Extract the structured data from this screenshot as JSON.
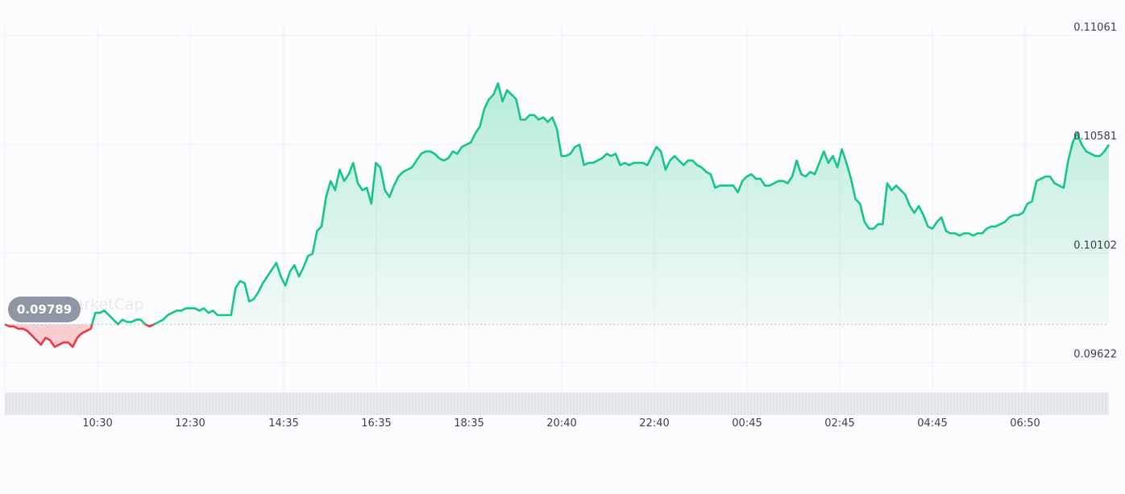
{
  "chart_data": {
    "type": "line",
    "watermark": "CoinMarketCap",
    "baseline_value": 0.09789,
    "baseline_label": "0.09789",
    "x_tick_labels": [
      "10:30",
      "12:30",
      "14:35",
      "16:35",
      "18:35",
      "20:40",
      "22:40",
      "00:45",
      "02:45",
      "04:45",
      "06:50"
    ],
    "y_tick_values": [
      0.11061,
      0.10581,
      0.10102,
      0.09622
    ],
    "y_tick_labels": [
      "0.11061",
      "0.10581",
      "0.10102",
      "0.09622"
    ],
    "ylim": [
      0.0955,
      0.1111
    ],
    "grid": true,
    "colors": {
      "up": "#16c784",
      "down": "#ea3943"
    },
    "series": [
      {
        "values": [
          0.0979,
          0.0978,
          0.0978,
          0.0977,
          0.0977,
          0.0976,
          0.0974,
          0.0972,
          0.097,
          0.0973,
          0.0972,
          0.0969,
          0.097,
          0.0971,
          0.0971,
          0.0969,
          0.0973,
          0.0975,
          0.0976,
          0.0977,
          0.0984,
          0.0984,
          0.0985,
          0.0983,
          0.0981,
          0.0979,
          0.0981,
          0.098,
          0.098,
          0.0981,
          0.0981,
          0.0979,
          0.0978,
          0.0979,
          0.098,
          0.0981,
          0.0983,
          0.0984,
          0.0985,
          0.0985,
          0.0986,
          0.0986,
          0.0986,
          0.0985,
          0.0986,
          0.0984,
          0.0985,
          0.0983,
          0.0983,
          0.0983,
          0.0983,
          0.0995,
          0.0998,
          0.0997,
          0.0989,
          0.099,
          0.0993,
          0.0997,
          0.1,
          0.1003,
          0.1006,
          0.1,
          0.0996,
          0.1002,
          0.1005,
          0.1,
          0.1004,
          0.1009,
          0.101,
          0.102,
          0.1022,
          0.1035,
          0.1042,
          0.1038,
          0.1047,
          0.1042,
          0.1045,
          0.105,
          0.1041,
          0.1038,
          0.1039,
          0.1032,
          0.105,
          0.1048,
          0.1038,
          0.1035,
          0.104,
          0.1044,
          0.1046,
          0.1047,
          0.1048,
          0.1051,
          0.1054,
          0.1055,
          0.1055,
          0.1054,
          0.1052,
          0.1051,
          0.1052,
          0.1055,
          0.1054,
          0.1057,
          0.1058,
          0.1059,
          0.1063,
          0.1066,
          0.1074,
          0.1078,
          0.108,
          0.1085,
          0.1077,
          0.1082,
          0.108,
          0.1078,
          0.1069,
          0.1069,
          0.1071,
          0.1071,
          0.1069,
          0.107,
          0.1068,
          0.107,
          0.1065,
          0.1053,
          0.1053,
          0.1054,
          0.1057,
          0.1058,
          0.1049,
          0.105,
          0.105,
          0.1051,
          0.1052,
          0.1054,
          0.1053,
          0.1054,
          0.1049,
          0.105,
          0.1049,
          0.105,
          0.105,
          0.105,
          0.1049,
          0.1053,
          0.1057,
          0.1055,
          0.1047,
          0.1051,
          0.1053,
          0.1051,
          0.1049,
          0.1051,
          0.1051,
          0.1049,
          0.1048,
          0.1046,
          0.1045,
          0.1039,
          0.104,
          0.104,
          0.104,
          0.104,
          0.1037,
          0.1042,
          0.1044,
          0.1045,
          0.1043,
          0.1043,
          0.104,
          0.104,
          0.1041,
          0.1042,
          0.1042,
          0.1041,
          0.1044,
          0.1051,
          0.1045,
          0.1044,
          0.1046,
          0.1045,
          0.105,
          0.1055,
          0.105,
          0.1053,
          0.1048,
          0.1056,
          0.105,
          0.1043,
          0.1034,
          0.1032,
          0.1024,
          0.1021,
          0.1021,
          0.1023,
          0.1023,
          0.1041,
          0.1038,
          0.104,
          0.1038,
          0.1036,
          0.1031,
          0.1028,
          0.1031,
          0.1027,
          0.1022,
          0.1021,
          0.1024,
          0.1026,
          0.102,
          0.1019,
          0.1019,
          0.1018,
          0.1019,
          0.1019,
          0.1018,
          0.1019,
          0.1019,
          0.1021,
          0.1022,
          0.1022,
          0.1023,
          0.1024,
          0.1026,
          0.1027,
          0.1027,
          0.1028,
          0.1032,
          0.1033,
          0.1042,
          0.1043,
          0.1044,
          0.1044,
          0.1041,
          0.104,
          0.1039,
          0.1051,
          0.1059,
          0.1063,
          0.1058,
          0.1055,
          0.1054,
          0.1053,
          0.1053,
          0.1055,
          0.1058
        ]
      }
    ]
  }
}
